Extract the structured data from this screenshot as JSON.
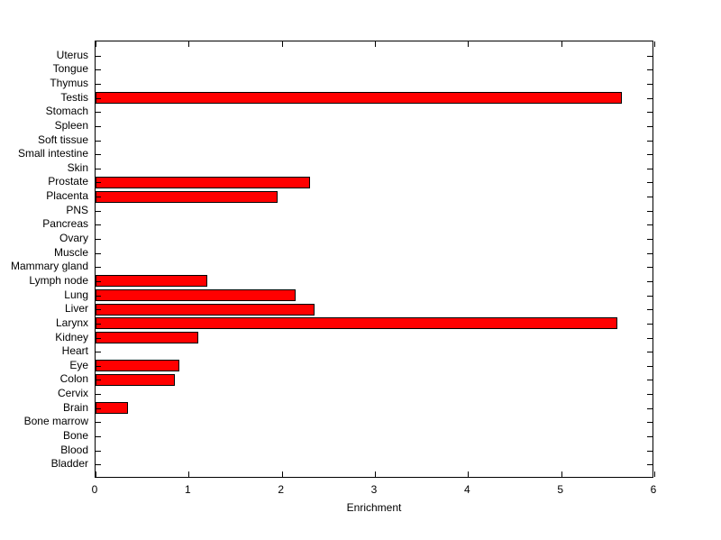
{
  "chart_data": {
    "type": "bar",
    "orientation": "horizontal",
    "title": "",
    "xlabel": "Enrichment",
    "ylabel": "",
    "xlim": [
      0,
      6
    ],
    "xticks": [
      0,
      1,
      2,
      3,
      4,
      5,
      6
    ],
    "grid": false,
    "legend": false,
    "bar_color": "#ff0000",
    "bar_edge_color": "#000000",
    "categories": [
      "Uterus",
      "Tongue",
      "Thymus",
      "Testis",
      "Stomach",
      "Spleen",
      "Soft tissue",
      "Small intestine",
      "Skin",
      "Prostate",
      "Placenta",
      "PNS",
      "Pancreas",
      "Ovary",
      "Muscle",
      "Mammary gland",
      "Lymph node",
      "Lung",
      "Liver",
      "Larynx",
      "Kidney",
      "Heart",
      "Eye",
      "Colon",
      "Cervix",
      "Brain",
      "Bone marrow",
      "Bone",
      "Blood",
      "Bladder"
    ],
    "values": [
      0,
      0,
      0,
      5.65,
      0,
      0,
      0,
      0,
      0,
      2.3,
      1.95,
      0,
      0,
      0,
      0,
      0,
      1.2,
      2.15,
      2.35,
      5.6,
      1.1,
      0,
      0.9,
      0.85,
      0,
      0.35,
      0,
      0,
      0,
      0
    ]
  }
}
